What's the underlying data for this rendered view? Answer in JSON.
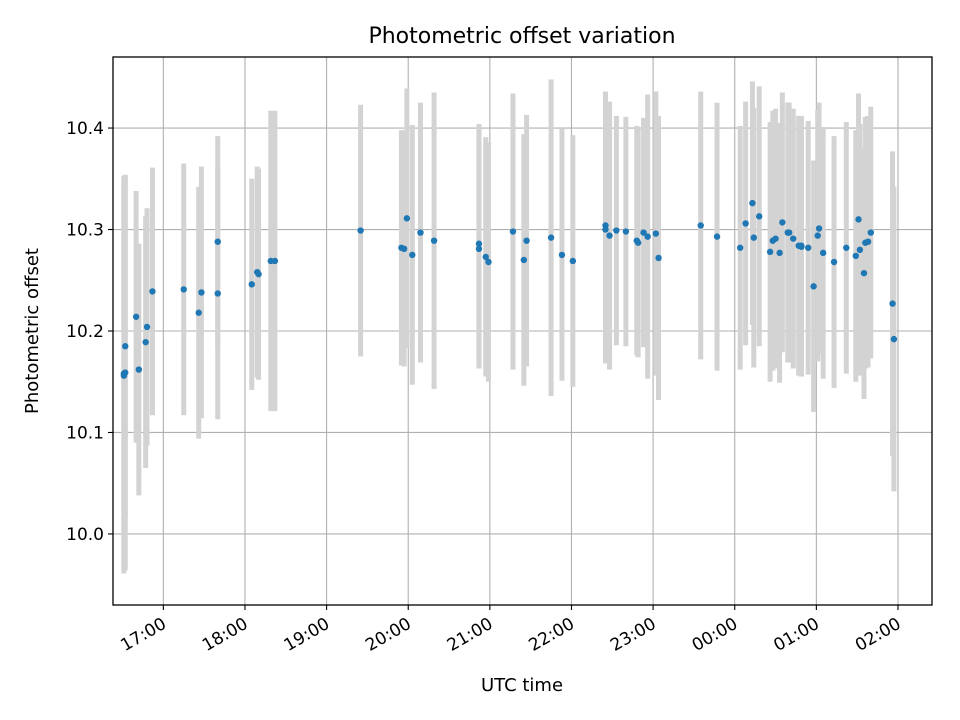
{
  "chart_data": {
    "type": "scatter",
    "title": "Photometric offset variation",
    "xlabel": "UTC time",
    "ylabel": "Photometric offset",
    "x_axis_kind": "time",
    "xlim": [
      "16:23",
      "02:25"
    ],
    "ylim": [
      9.93,
      10.47
    ],
    "grid": true,
    "colors": {
      "point": "#1f77b4",
      "errorbar": "#d3d3d3"
    },
    "xticks": [
      "17:00",
      "18:00",
      "19:00",
      "20:00",
      "21:00",
      "22:00",
      "23:00",
      "00:00",
      "01:00",
      "02:00"
    ],
    "yticks": [
      "10.0",
      "10.1",
      "10.2",
      "10.3",
      "10.4"
    ],
    "series": [
      {
        "x": [
          "16:31",
          "16:31",
          "16:32",
          "16:32",
          "16:40",
          "16:42",
          "16:47",
          "16:48",
          "16:52",
          "17:15",
          "17:26",
          "17:28",
          "17:40",
          "17:40",
          "18:05",
          "18:09",
          "18:10",
          "18:19",
          "18:22",
          "19:25",
          "19:55",
          "19:57",
          "19:59",
          "20:03",
          "20:09",
          "20:19",
          "20:52",
          "20:52",
          "20:57",
          "20:59",
          "21:17",
          "21:25",
          "21:27",
          "21:45",
          "21:53",
          "22:01",
          "22:25",
          "22:25",
          "22:28",
          "22:33",
          "22:40",
          "22:48",
          "22:49",
          "22:53",
          "22:56",
          "23:02",
          "23:04",
          "23:35",
          "23:47",
          "00:04",
          "00:08",
          "00:13",
          "00:14",
          "00:18",
          "00:26",
          "00:28",
          "00:30",
          "00:33",
          "00:35",
          "00:39",
          "00:40",
          "00:43",
          "00:47",
          "00:49",
          "00:49",
          "00:54",
          "00:58",
          "01:01",
          "01:02",
          "01:05",
          "01:13",
          "01:22",
          "01:29",
          "01:31",
          "01:32",
          "01:35",
          "01:36",
          "01:38",
          "01:40",
          "01:56",
          "01:57"
        ],
        "y": [
          10.158,
          10.156,
          10.159,
          10.185,
          10.214,
          10.162,
          10.189,
          10.204,
          10.239,
          10.241,
          10.218,
          10.238,
          10.237,
          10.288,
          10.246,
          10.258,
          10.256,
          10.269,
          10.269,
          10.299,
          10.282,
          10.281,
          10.311,
          10.275,
          10.297,
          10.289,
          10.286,
          10.281,
          10.273,
          10.268,
          10.298,
          10.27,
          10.289,
          10.292,
          10.275,
          10.269,
          10.304,
          10.3,
          10.294,
          10.299,
          10.298,
          10.289,
          10.287,
          10.297,
          10.293,
          10.296,
          10.272,
          10.304,
          10.293,
          10.282,
          10.306,
          10.326,
          10.292,
          10.313,
          10.278,
          10.289,
          10.291,
          10.277,
          10.307,
          10.297,
          10.297,
          10.291,
          10.284,
          10.284,
          10.283,
          10.282,
          10.244,
          10.294,
          10.301,
          10.277,
          10.268,
          10.282,
          10.274,
          10.31,
          10.28,
          10.257,
          10.287,
          10.288,
          10.297,
          10.227,
          10.192
        ],
        "err": [
          0.195,
          0.195,
          0.195,
          0.168,
          0.124,
          0.124,
          0.124,
          0.117,
          0.122,
          0.124,
          0.124,
          0.124,
          0.124,
          0.104,
          0.104,
          0.104,
          0.104,
          0.148,
          0.148,
          0.124,
          0.116,
          0.116,
          0.128,
          0.128,
          0.128,
          0.146,
          0.118,
          0.118,
          0.118,
          0.118,
          0.136,
          0.124,
          0.124,
          0.156,
          0.124,
          0.124,
          0.132,
          0.132,
          0.132,
          0.113,
          0.113,
          0.113,
          0.113,
          0.113,
          0.14,
          0.14,
          0.14,
          0.132,
          0.132,
          0.12,
          0.12,
          0.12,
          0.128,
          0.128,
          0.128,
          0.128,
          0.128,
          0.128,
          0.128,
          0.128,
          0.128,
          0.128,
          0.128,
          0.128,
          0.128,
          0.125,
          0.124,
          0.124,
          0.124,
          0.124,
          0.124,
          0.124,
          0.124,
          0.124,
          0.124,
          0.124,
          0.124,
          0.124,
          0.124,
          0.15,
          0.15
        ]
      }
    ]
  }
}
